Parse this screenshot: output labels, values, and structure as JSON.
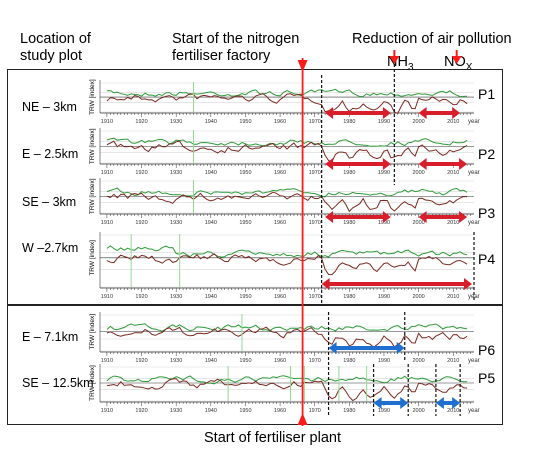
{
  "headers": {
    "location": [
      "Location of",
      "study plot"
    ],
    "factory": [
      "Start of the nitrogen",
      "fertiliser factory"
    ],
    "reduction": "Reduction of air pollution",
    "nh3": {
      "base": "NH",
      "sub": "3"
    },
    "nox": {
      "base": "NO",
      "sub": "X"
    }
  },
  "footer": "Start of fertiliser plant",
  "axis": {
    "ylabel": "TRW [index]",
    "xlabel": "year",
    "ticks_full": [
      "1910",
      "1920",
      "1930",
      "1940",
      "1950",
      "1960",
      "1970",
      "1980",
      "1990",
      "2000",
      "2010"
    ],
    "ticks_p4": [
      "1910",
      "1920",
      "1930",
      "1940",
      "1950",
      "1960",
      "1970",
      "1980",
      "1990",
      "2000",
      "2010"
    ]
  },
  "plots": [
    {
      "id": "P1",
      "site": "NE – 3km",
      "tick_from": 1910,
      "group": 1
    },
    {
      "id": "P2",
      "site": "E – 2.5km",
      "tick_from": 1910,
      "group": 1
    },
    {
      "id": "P3",
      "site": "SE – 3km",
      "tick_from": 1910,
      "group": 1
    },
    {
      "id": "P4",
      "site": "W –2.7km",
      "tick_from": 1910,
      "group": 1
    },
    {
      "id": "P6",
      "site": "E – 7.1km",
      "tick_from": 1910,
      "group": 2
    },
    {
      "id": "P5",
      "site": "SE – 12.5km",
      "tick_from": 1910,
      "group": 2
    }
  ],
  "colors": {
    "green": "#2f9a3a",
    "brown": "#7a2a22",
    "red_line": "#ff1a1a",
    "red_arrow": "#d81e2a",
    "blue_arrow": "#1f6fd0",
    "light_green": "#8fdc8f"
  }
}
